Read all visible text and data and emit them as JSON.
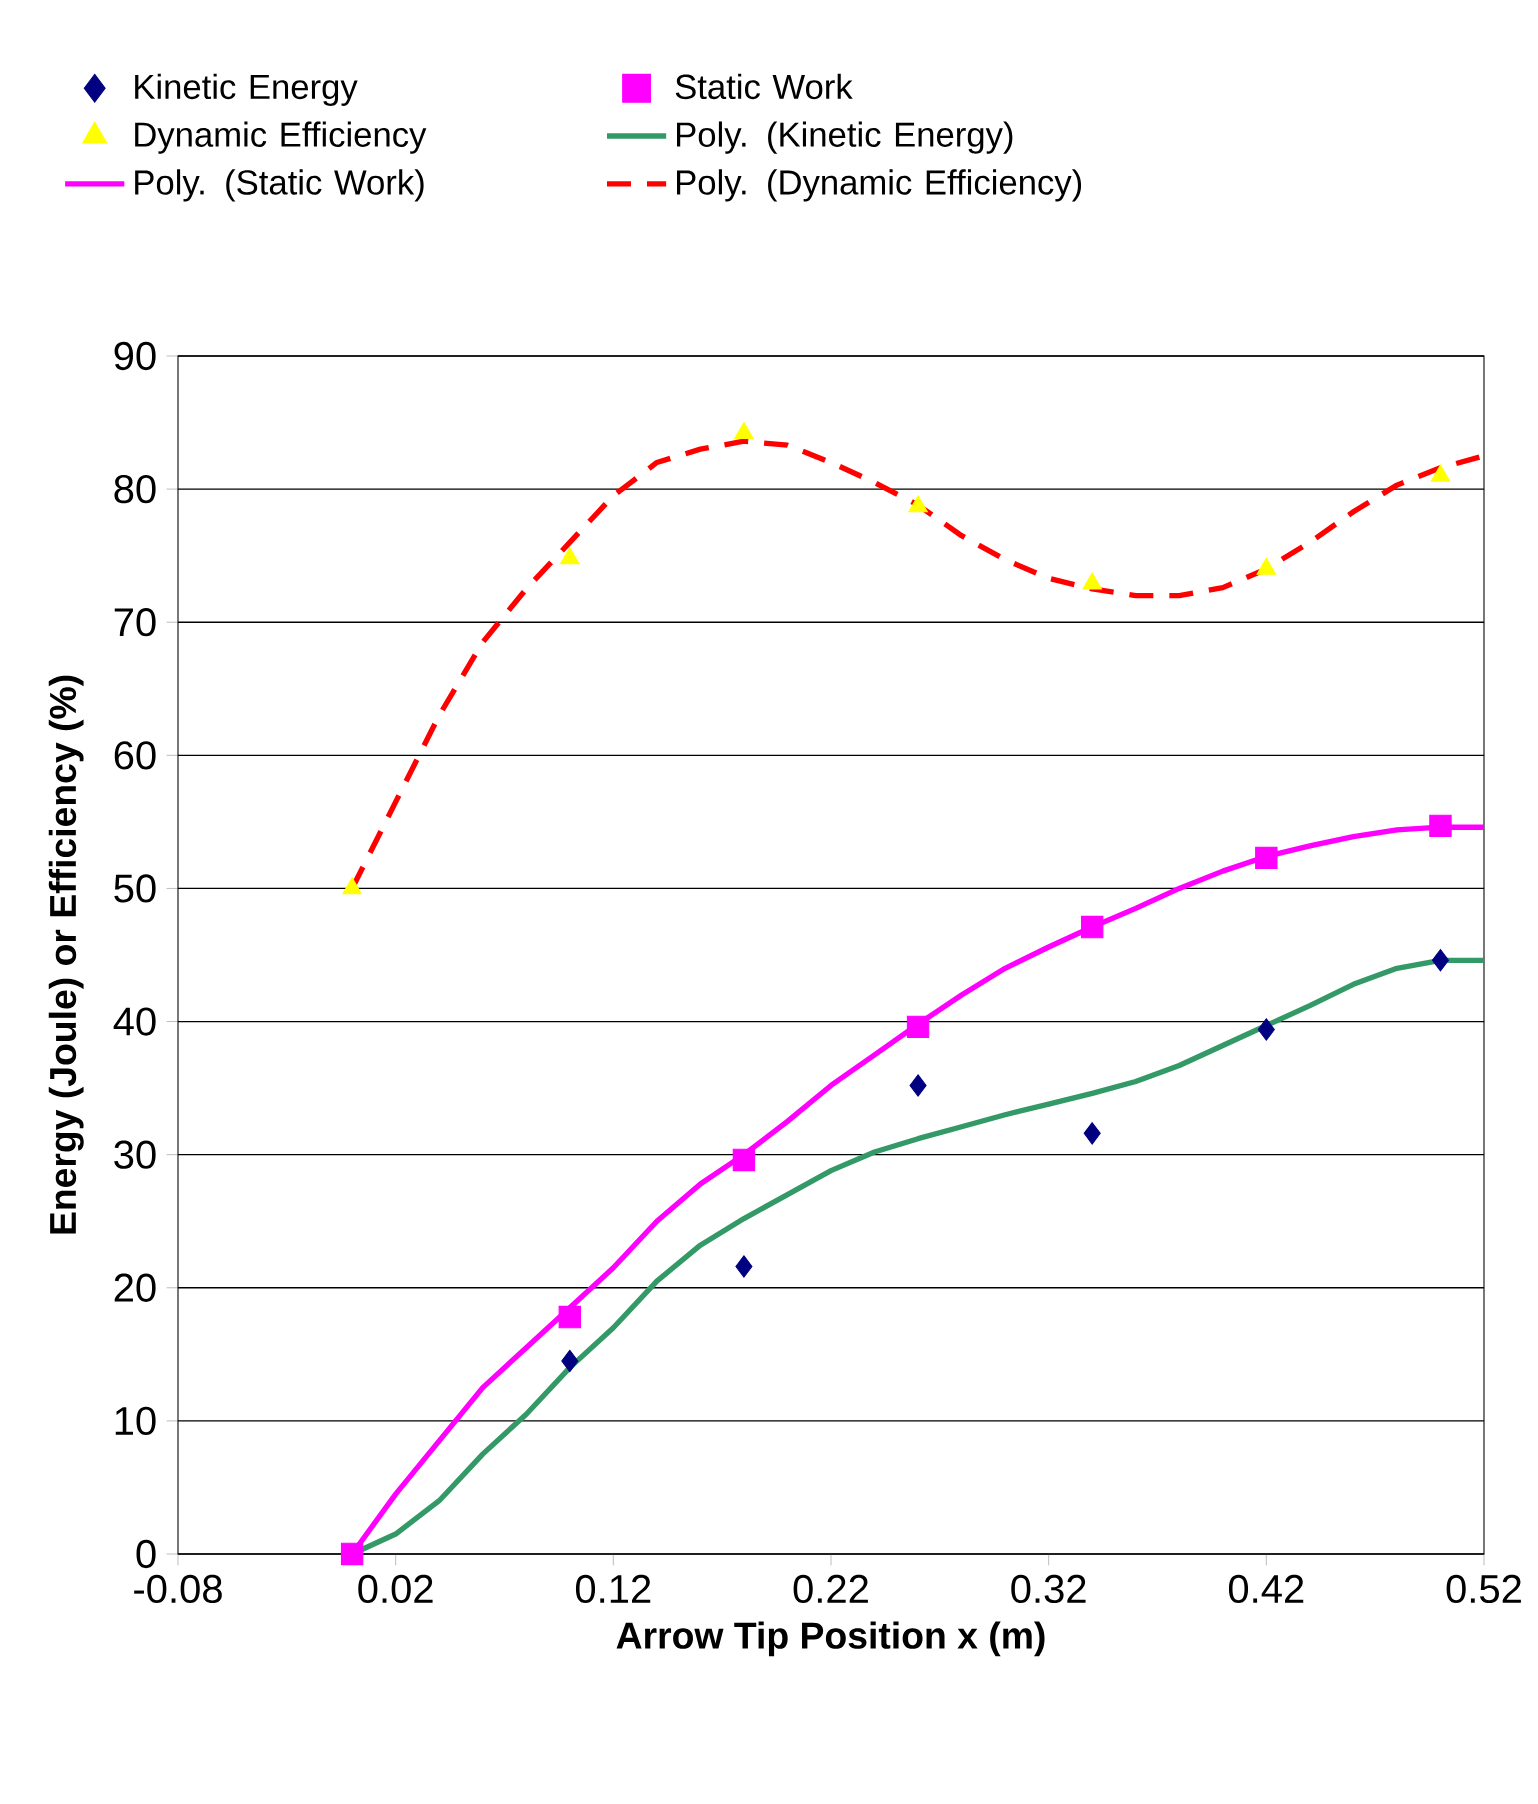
{
  "chart_data": {
    "type": "scatter",
    "xlabel": "Arrow Tip Position x (m)",
    "ylabel": "Energy (Joule) or Efficiency (%)",
    "xlim": [
      -0.08,
      0.52
    ],
    "xticks": [
      -0.08,
      0.02,
      0.12,
      0.22,
      0.32,
      0.42,
      0.52
    ],
    "ylim": [
      0,
      90
    ],
    "yticks": [
      0,
      10,
      20,
      30,
      40,
      50,
      60,
      70,
      80,
      90
    ],
    "grid": "y",
    "legend": "top",
    "series": [
      {
        "name": "Kinetic Energy",
        "marker": "diamond",
        "color": "#000080",
        "x": [
          0.1,
          0.18,
          0.26,
          0.34,
          0.42,
          0.5
        ],
        "values": [
          14.5,
          21.6,
          35.2,
          31.6,
          39.4,
          44.6
        ]
      },
      {
        "name": "Static Work",
        "marker": "square",
        "color": "#ff00ff",
        "x": [
          0,
          0.1,
          0.18,
          0.26,
          0.34,
          0.42,
          0.5
        ],
        "values": [
          0,
          17.8,
          29.6,
          39.6,
          47.1,
          52.3,
          54.7
        ]
      },
      {
        "name": "Dynamic Efficiency",
        "marker": "triangle",
        "color": "#ffff00",
        "x": [
          0,
          0.1,
          0.18,
          0.26,
          0.34,
          0.42,
          0.5
        ],
        "values": [
          50,
          74.8,
          84.2,
          78.7,
          72.9,
          74.0,
          81.0
        ]
      },
      {
        "name": "Poly. (Kinetic Energy)",
        "type": "line",
        "marker": "none",
        "line_style": "solid",
        "color": "#339966",
        "x": [
          0,
          0.02,
          0.04,
          0.06,
          0.08,
          0.1,
          0.12,
          0.14,
          0.16,
          0.18,
          0.2,
          0.22,
          0.24,
          0.26,
          0.28,
          0.3,
          0.32,
          0.34,
          0.36,
          0.38,
          0.4,
          0.42,
          0.44,
          0.46,
          0.48,
          0.5,
          0.52
        ],
        "values": [
          0,
          1.5,
          4,
          7.5,
          10.5,
          14,
          17,
          20.5,
          23.2,
          25.2,
          27,
          28.8,
          30.2,
          31.2,
          32.1,
          33,
          33.8,
          34.6,
          35.5,
          36.7,
          38.2,
          39.7,
          41.2,
          42.8,
          44,
          44.6,
          44.6
        ]
      },
      {
        "name": "Poly. (Static Work)",
        "type": "line",
        "marker": "none",
        "line_style": "solid",
        "color": "#ff00ff",
        "x": [
          0,
          0.02,
          0.04,
          0.06,
          0.08,
          0.1,
          0.12,
          0.14,
          0.16,
          0.18,
          0.2,
          0.22,
          0.24,
          0.26,
          0.28,
          0.3,
          0.32,
          0.34,
          0.36,
          0.38,
          0.4,
          0.42,
          0.44,
          0.46,
          0.48,
          0.5,
          0.52
        ],
        "values": [
          0,
          4.5,
          8.5,
          12.5,
          15.5,
          18.5,
          21.5,
          25,
          27.8,
          30,
          32.5,
          35.2,
          37.5,
          39.8,
          42,
          44,
          45.6,
          47.1,
          48.5,
          50,
          51.3,
          52.4,
          53.2,
          53.9,
          54.4,
          54.6,
          54.6
        ]
      },
      {
        "name": "Poly. (Dynamic Efficiency)",
        "type": "line",
        "marker": "none",
        "line_style": "dashed",
        "color": "#ff0000",
        "x": [
          0,
          0.02,
          0.04,
          0.06,
          0.08,
          0.1,
          0.12,
          0.14,
          0.16,
          0.18,
          0.2,
          0.22,
          0.24,
          0.26,
          0.28,
          0.3,
          0.32,
          0.34,
          0.36,
          0.38,
          0.4,
          0.42,
          0.44,
          0.46,
          0.48,
          0.5,
          0.52
        ],
        "values": [
          50,
          56.5,
          63,
          68.5,
          72.5,
          76,
          79.5,
          82,
          83,
          83.6,
          83.3,
          82,
          80.5,
          78.8,
          76.5,
          74.7,
          73.3,
          72.5,
          72,
          72,
          72.6,
          74,
          76,
          78.3,
          80.3,
          81.6,
          82.5
        ]
      }
    ]
  }
}
